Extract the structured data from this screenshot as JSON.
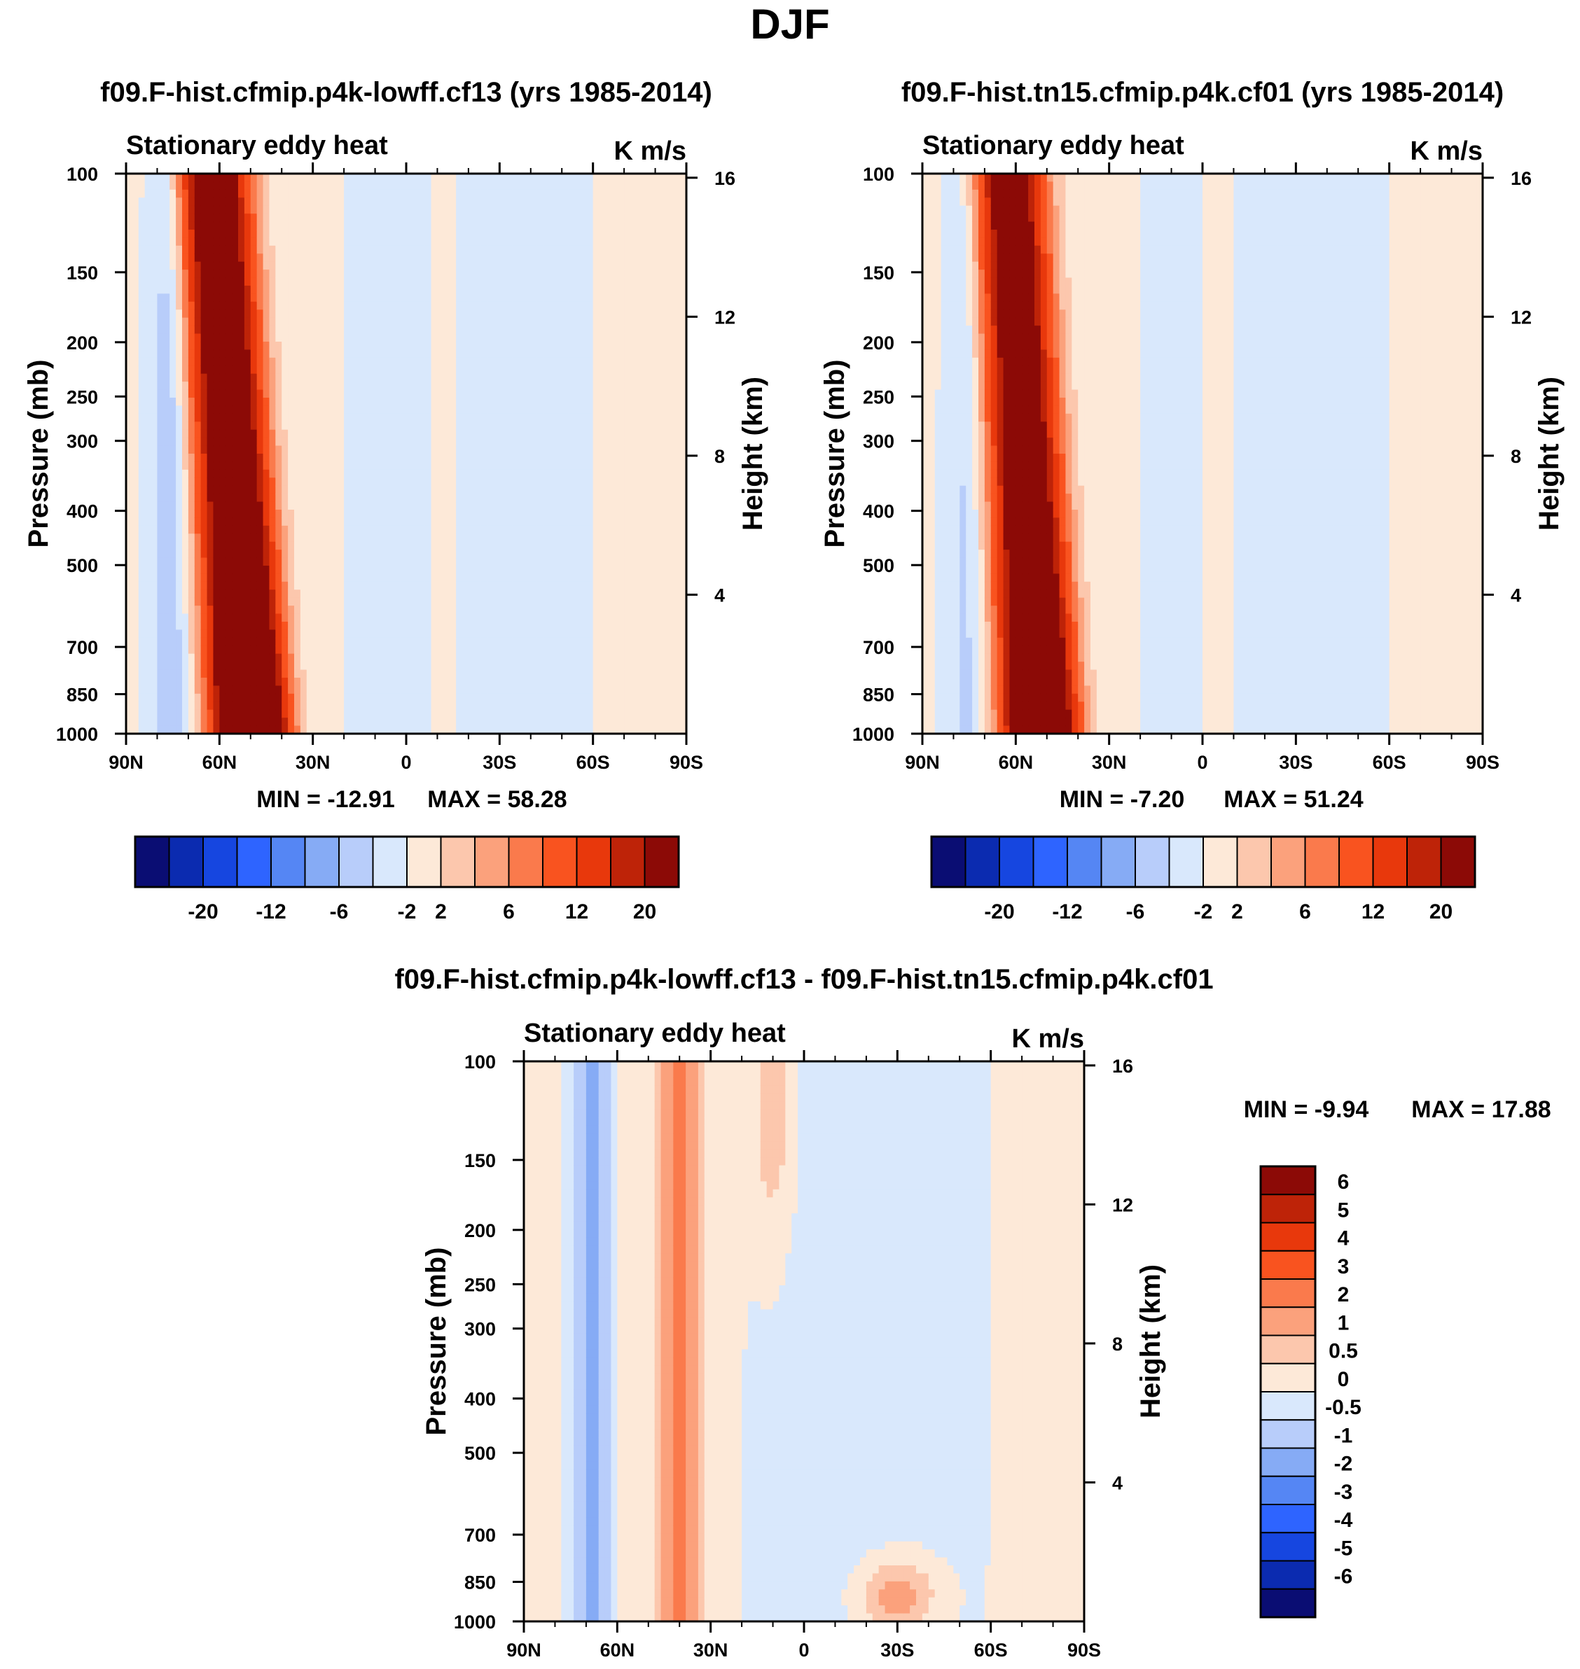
{
  "figure": {
    "title": "DJF",
    "diff_title": "f09.F-hist.cfmip.p4k-lowff.cf13 - f09.F-hist.tn15.cfmip.p4k.cf01"
  },
  "chart_data": [
    {
      "type": "heatmap",
      "title": "f09.F-hist.cfmip.p4k-lowff.cf13 (yrs 1985-2014)",
      "left_label": "Stationary eddy heat",
      "units": "K m/s",
      "xlabel": "",
      "ylabel": "Pressure (mb)",
      "ylabel_right": "Height (km)",
      "x_ticks": [
        "90N",
        "60N",
        "30N",
        "0",
        "30S",
        "60S",
        "90S"
      ],
      "x_range": [
        90,
        -90
      ],
      "y_ticks": [
        100,
        150,
        200,
        250,
        300,
        400,
        500,
        700,
        850,
        1000
      ],
      "y_range_mb": [
        1000,
        100
      ],
      "y_scale": "log",
      "height_ticks_km": [
        4,
        8,
        12,
        16
      ],
      "min_label": "MIN = -12.91",
      "max_label": "MAX =  58.28",
      "min": -12.91,
      "max": 58.28,
      "contour_levels": [
        "-20",
        "-16",
        "-12",
        "-8",
        "-6",
        "-4",
        "-2",
        "0",
        "2",
        "4",
        "6",
        "8",
        "12",
        "16",
        "20"
      ],
      "colorbar_labels": [
        "-20",
        "-12",
        "-6",
        "-2",
        "2",
        "6",
        "12",
        "20"
      ],
      "colorbar_colors": [
        "#0a0d73",
        "#0b2bb0",
        "#1646e0",
        "#2e64ff",
        "#5586f4",
        "#86abf5",
        "#b8cdfa",
        "#d9e8fc",
        "#fde9d8",
        "#fcc7ad",
        "#fba17c",
        "#fa7a4c",
        "#f9531f",
        "#e8380c",
        "#be2308",
        "#8c0a06"
      ],
      "features": [
        {
          "type": "ridge",
          "sign": "positive",
          "lat_at_1000mb": 50,
          "lat_at_100mb": 62,
          "peak": 58.28,
          "near_level": "1000-850"
        },
        {
          "type": "band",
          "sign": "negative",
          "lat": 76,
          "value": -4
        },
        {
          "type": "band",
          "sign": "positive",
          "lat": -12,
          "value": 1
        }
      ]
    },
    {
      "type": "heatmap",
      "title": "f09.F-hist.tn15.cfmip.p4k.cf01 (yrs 1985-2014)",
      "left_label": "Stationary eddy heat",
      "units": "K m/s",
      "xlabel": "",
      "ylabel": "Pressure (mb)",
      "ylabel_right": "Height (km)",
      "x_ticks": [
        "90N",
        "60N",
        "30N",
        "0",
        "30S",
        "60S",
        "90S"
      ],
      "x_range": [
        90,
        -90
      ],
      "y_ticks": [
        100,
        150,
        200,
        250,
        300,
        400,
        500,
        700,
        850,
        1000
      ],
      "y_range_mb": [
        1000,
        100
      ],
      "y_scale": "log",
      "height_ticks_km": [
        4,
        8,
        12,
        16
      ],
      "min_label": "MIN =  -7.20",
      "max_label": "MAX =  51.24",
      "min": -7.2,
      "max": 51.24,
      "contour_levels": [
        "-20",
        "-16",
        "-12",
        "-8",
        "-6",
        "-4",
        "-2",
        "0",
        "2",
        "4",
        "6",
        "8",
        "12",
        "16",
        "20"
      ],
      "colorbar_labels": [
        "-20",
        "-12",
        "-6",
        "-2",
        "2",
        "6",
        "12",
        "20"
      ],
      "colorbar_colors": [
        "#0a0d73",
        "#0b2bb0",
        "#1646e0",
        "#2e64ff",
        "#5586f4",
        "#86abf5",
        "#b8cdfa",
        "#d9e8fc",
        "#fde9d8",
        "#fcc7ad",
        "#fba17c",
        "#fa7a4c",
        "#f9531f",
        "#e8380c",
        "#be2308",
        "#8c0a06"
      ],
      "features": [
        {
          "type": "ridge",
          "sign": "positive",
          "lat_at_1000mb": 52,
          "lat_at_100mb": 62,
          "peak": 51.24,
          "near_level": "1000-850"
        },
        {
          "type": "band",
          "sign": "negative",
          "lat": 76,
          "value": -3
        },
        {
          "type": "band",
          "sign": "positive",
          "lat": -5,
          "value": 1
        }
      ]
    },
    {
      "type": "heatmap",
      "title": "f09.F-hist.cfmip.p4k-lowff.cf13 - f09.F-hist.tn15.cfmip.p4k.cf01",
      "left_label": "Stationary eddy heat",
      "units": "K m/s",
      "xlabel": "",
      "ylabel": "Pressure (mb)",
      "ylabel_right": "Height (km)",
      "x_ticks": [
        "90N",
        "60N",
        "30N",
        "0",
        "30S",
        "60S",
        "90S"
      ],
      "x_range": [
        90,
        -90
      ],
      "y_ticks": [
        100,
        150,
        200,
        250,
        300,
        400,
        500,
        700,
        850,
        1000
      ],
      "y_range_mb": [
        1000,
        100
      ],
      "y_scale": "log",
      "height_ticks_km": [
        4,
        8,
        12,
        16
      ],
      "min_label": "MIN =  -9.94",
      "max_label": "MAX =  17.88",
      "min": -9.94,
      "max": 17.88,
      "contour_levels": [
        "-6",
        "-5",
        "-4",
        "-3",
        "-2",
        "-1",
        "-0.5",
        "0",
        "0.5",
        "1",
        "2",
        "3",
        "4",
        "5",
        "6"
      ],
      "colorbar_labels": [
        "6",
        "5",
        "4",
        "3",
        "2",
        "1",
        "0.5",
        "0",
        "-0.5",
        "-1",
        "-2",
        "-3",
        "-4",
        "-5",
        "-6"
      ],
      "colorbar_colors": [
        "#8c0a06",
        "#be2308",
        "#e8380c",
        "#f9531f",
        "#fa7a4c",
        "#fba17c",
        "#fcc7ad",
        "#fde9d8",
        "#d9e8fc",
        "#b8cdfa",
        "#86abf5",
        "#5586f4",
        "#2e64ff",
        "#1646e0",
        "#0b2bb0",
        "#0a0d73"
      ],
      "features": [
        {
          "type": "band",
          "sign": "negative",
          "lat": 68,
          "value": -1.5
        },
        {
          "type": "band",
          "sign": "positive",
          "lat": 40,
          "value": 2
        },
        {
          "type": "blob",
          "sign": "positive",
          "lat": -30,
          "level": 900,
          "value": 1.5
        },
        {
          "type": "band",
          "sign": "positive",
          "lat": 10,
          "level": 120,
          "value": 1
        }
      ]
    }
  ]
}
